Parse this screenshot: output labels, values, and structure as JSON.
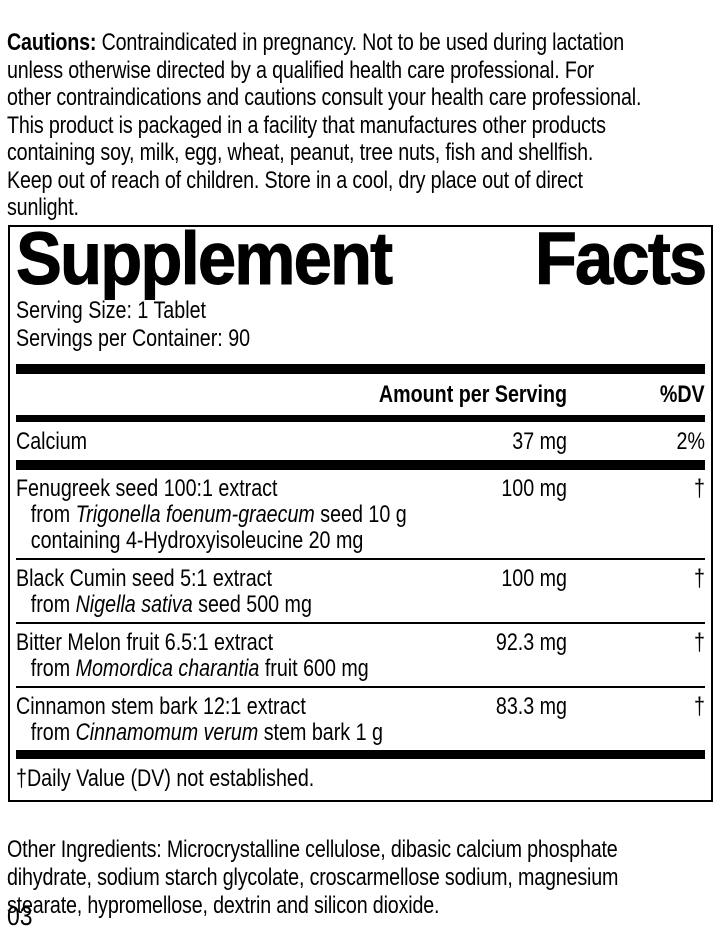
{
  "colors": {
    "text": "#000000",
    "background": "#ffffff"
  },
  "cautions": {
    "label": "Cautions:",
    "lines": [
      "Contraindicated in pregnancy. Not to be used during lactation",
      "unless otherwise directed by a qualified health care professional. For",
      "other contraindications and cautions consult your health care professional.",
      "This product is packaged in a facility that manufactures other products",
      "containing soy, milk, egg, wheat, peanut, tree nuts, fish and shellfish.",
      "Keep out of reach of children. Store in a cool, dry place out of direct",
      "sunlight."
    ]
  },
  "panel": {
    "title_words": [
      "Supplement",
      "Facts"
    ],
    "serving_size": "Serving Size: 1 Tablet",
    "servings_per_container": "Servings per Container: 90",
    "columns": {
      "amount": "Amount per Serving",
      "dv": "%DV"
    },
    "rows": [
      {
        "name": "Calcium",
        "amount": "37 mg",
        "dv": "2%",
        "sub": [],
        "sep_after": "thick"
      },
      {
        "name": "Fenugreek seed 100:1 extract",
        "amount": "100 mg",
        "dv": "†",
        "sub": [
          [
            {
              "text": "from ",
              "italic": false
            },
            {
              "text": "Trigonella foenum-graecum",
              "italic": true
            },
            {
              "text": " seed 10 g",
              "italic": false
            }
          ],
          [
            {
              "text": "containing 4-Hydroxyisoleucine 20 mg",
              "italic": false
            }
          ]
        ],
        "sep_after": "thin"
      },
      {
        "name": "Black Cumin seed 5:1 extract",
        "amount": "100 mg",
        "dv": "†",
        "sub": [
          [
            {
              "text": "from ",
              "italic": false
            },
            {
              "text": "Nigella sativa",
              "italic": true
            },
            {
              "text": " seed 500 mg",
              "italic": false
            }
          ]
        ],
        "sep_after": "thin"
      },
      {
        "name": "Bitter Melon fruit 6.5:1 extract",
        "amount": "92.3 mg",
        "dv": "†",
        "sub": [
          [
            {
              "text": "from ",
              "italic": false
            },
            {
              "text": "Momordica charantia",
              "italic": true
            },
            {
              "text": " fruit 600 mg",
              "italic": false
            }
          ]
        ],
        "sep_after": "thin"
      },
      {
        "name": "Cinnamon stem bark 12:1 extract",
        "amount": "83.3 mg",
        "dv": "†",
        "sub": [
          [
            {
              "text": "from ",
              "italic": false
            },
            {
              "text": "Cinnamomum verum",
              "italic": true
            },
            {
              "text": " stem bark 1 g",
              "italic": false
            }
          ]
        ],
        "sep_after": "none"
      }
    ],
    "footnote": "†Daily Value (DV) not established."
  },
  "other_ingredients": {
    "lines": [
      "Other Ingredients: Microcrystalline cellulose, dibasic calcium phosphate",
      "dihydrate, sodium starch glycolate, croscarmellose sodium, magnesium",
      "stearate, hypromellose, dextrin and silicon dioxide."
    ]
  },
  "page_number": "03"
}
